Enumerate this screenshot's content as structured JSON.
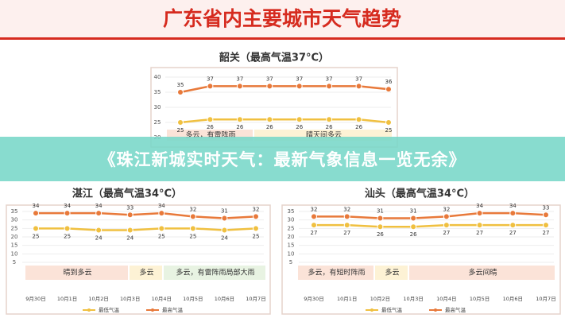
{
  "header": {
    "title": "广东省内主要城市天气趋势"
  },
  "banner": {
    "text": "《珠江新城实时天气：最新气象信息一览无余》"
  },
  "chart_data": [
    {
      "type": "line",
      "title": "韶关（最高气温37°C）",
      "categories": [
        null,
        null,
        null,
        null,
        null,
        null,
        null,
        null
      ],
      "series": [
        {
          "color": "#e8793a",
          "values": [
            35,
            37,
            37,
            37,
            37,
            37,
            37,
            36
          ]
        },
        {
          "color": "#f0c040",
          "values": [
            25,
            26,
            26,
            26,
            26,
            26,
            26,
            25
          ]
        }
      ],
      "weather": [
        "多云，有雷阵雨",
        "晴天间多云"
      ],
      "ylim": [
        20,
        40
      ],
      "yticks": [
        20,
        25,
        30,
        35,
        40
      ],
      "grid": true
    },
    {
      "type": "line",
      "title": "湛江（最高气温34°C）",
      "categories": [
        "9月30日",
        "10月1日",
        "10月2日",
        "10月3日",
        "10月4日",
        "10月5日",
        "10月6日",
        "10月7日"
      ],
      "series": [
        {
          "name": "最高气温",
          "color": "#e8793a",
          "values": [
            34,
            34,
            34,
            33,
            34,
            32,
            31,
            32
          ]
        },
        {
          "name": "最低气温",
          "color": "#f0c040",
          "values": [
            25,
            25,
            24,
            24,
            25,
            25,
            24,
            25
          ]
        }
      ],
      "weather": [
        "晴到多云",
        "多云",
        "多云，有雷阵雨局部大雨"
      ],
      "ylim": [
        5,
        35
      ],
      "yticks": [
        5,
        10,
        15,
        20,
        25,
        30,
        35
      ],
      "grid": true
    },
    {
      "type": "line",
      "title": "汕头（最高气温34°C）",
      "categories": [
        "9月30日",
        "10月1日",
        "10月2日",
        "10月3日",
        "10月4日",
        "10月5日",
        "10月6日",
        "10月7日"
      ],
      "series": [
        {
          "name": "最高气温",
          "color": "#e8793a",
          "values": [
            32,
            32,
            31,
            31,
            32,
            34,
            34,
            33
          ]
        },
        {
          "name": "最低气温",
          "color": "#f0c040",
          "values": [
            27,
            27,
            26,
            26,
            27,
            27,
            27,
            27
          ]
        }
      ],
      "weather": [
        "多云，有短时阵雨",
        "多云",
        "多云间晴"
      ],
      "ylim": [
        5,
        35
      ],
      "yticks": [
        5,
        10,
        15,
        20,
        25,
        30,
        35
      ],
      "grid": true
    }
  ]
}
